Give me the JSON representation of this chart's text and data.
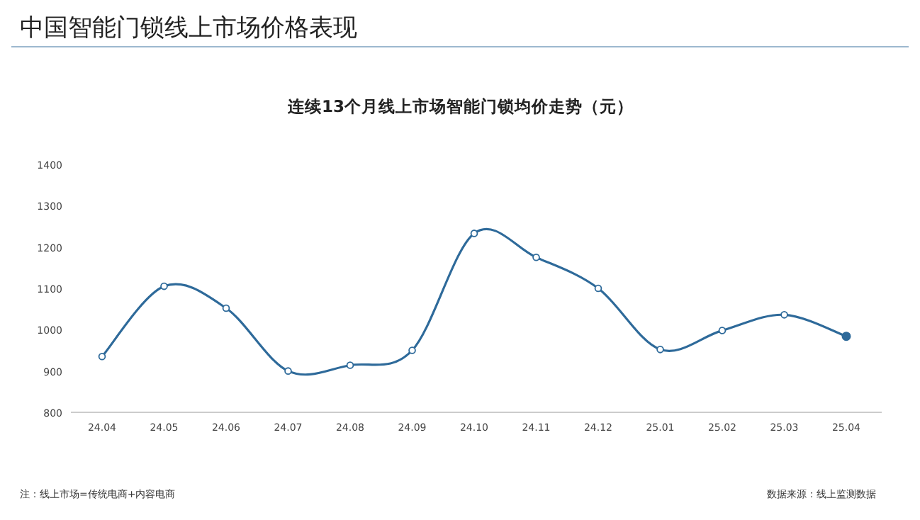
{
  "chart_data": {
    "type": "line",
    "title": "中国智能门锁线上市场价格表现",
    "subtitle": "连续13个月线上市场智能门锁均价走势（元）",
    "categories": [
      "24.04",
      "24.05",
      "24.06",
      "24.07",
      "24.08",
      "24.09",
      "24.10",
      "24.11",
      "24.12",
      "25.01",
      "25.02",
      "25.03",
      "25.04"
    ],
    "series": [
      {
        "color": "#2e6a9a",
        "values": [
          935,
          1105,
          1052,
          900,
          914,
          950,
          1233,
          1175,
          1100,
          952,
          998,
          1036,
          984
        ]
      }
    ],
    "ylim": [
      800,
      1400
    ],
    "yticks": [
      800,
      900,
      1000,
      1100,
      1200,
      1300,
      1400
    ],
    "grid": false,
    "marker": "circle",
    "line_style": "solid",
    "annotations": [
      "注：线上市场=传统电商+内容电商",
      "数据来源：线上监测数据"
    ]
  }
}
